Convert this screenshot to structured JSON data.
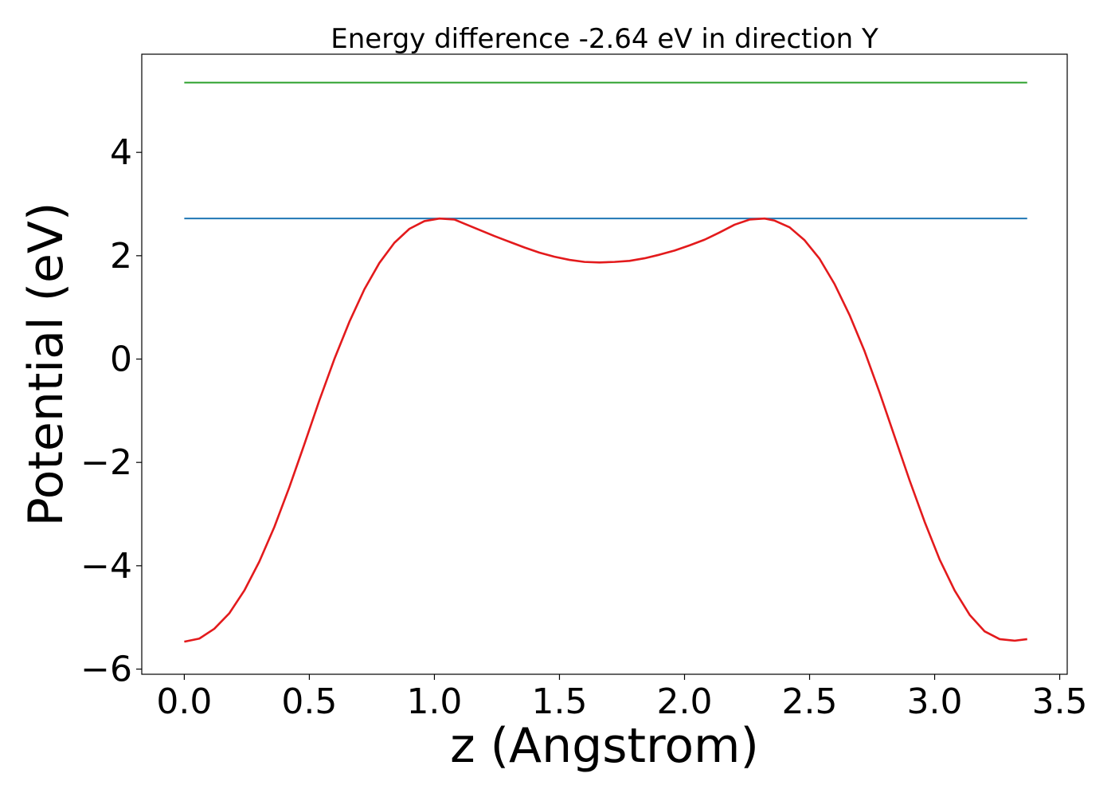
{
  "chart_data": {
    "type": "line",
    "title": "Energy difference -2.64 eV in direction Y",
    "xlabel": "z (Angstrom)",
    "ylabel": "Potential (eV)",
    "xlim": [
      -0.17,
      3.53
    ],
    "ylim": [
      -6.1,
      5.9
    ],
    "xticks": [
      {
        "value": 0.0,
        "label": "0.0"
      },
      {
        "value": 0.5,
        "label": "0.5"
      },
      {
        "value": 1.0,
        "label": "1.0"
      },
      {
        "value": 1.5,
        "label": "1.5"
      },
      {
        "value": 2.0,
        "label": "2.0"
      },
      {
        "value": 2.5,
        "label": "2.5"
      },
      {
        "value": 3.0,
        "label": "3.0"
      },
      {
        "value": 3.5,
        "label": "3.5"
      }
    ],
    "yticks": [
      {
        "value": -6,
        "label": "−6"
      },
      {
        "value": -4,
        "label": "−4"
      },
      {
        "value": -2,
        "label": "−2"
      },
      {
        "value": 0,
        "label": "0"
      },
      {
        "value": 2,
        "label": "2"
      },
      {
        "value": 4,
        "label": "4"
      }
    ],
    "grid": false,
    "series": [
      {
        "color": "#2ca02c",
        "x": [
          0.0,
          3.37
        ],
        "y": [
          5.35,
          5.35
        ]
      },
      {
        "color": "#1f77b4",
        "x": [
          0.0,
          3.37
        ],
        "y": [
          2.72,
          2.72
        ]
      },
      {
        "color": "#e31a1c",
        "x": [
          0.0,
          0.06,
          0.12,
          0.18,
          0.24,
          0.3,
          0.36,
          0.42,
          0.48,
          0.54,
          0.6,
          0.66,
          0.72,
          0.78,
          0.84,
          0.9,
          0.96,
          1.02,
          1.08,
          1.12,
          1.18,
          1.24,
          1.3,
          1.36,
          1.42,
          1.48,
          1.54,
          1.6,
          1.66,
          1.72,
          1.78,
          1.84,
          1.9,
          1.96,
          2.02,
          2.08,
          2.14,
          2.2,
          2.26,
          2.32,
          2.36,
          2.42,
          2.48,
          2.54,
          2.6,
          2.66,
          2.72,
          2.78,
          2.84,
          2.9,
          2.96,
          3.02,
          3.08,
          3.14,
          3.2,
          3.26,
          3.32,
          3.37
        ],
        "y": [
          -5.47,
          -5.41,
          -5.22,
          -4.92,
          -4.48,
          -3.92,
          -3.25,
          -2.48,
          -1.65,
          -0.8,
          0.0,
          0.72,
          1.35,
          1.86,
          2.25,
          2.52,
          2.67,
          2.72,
          2.7,
          2.62,
          2.5,
          2.38,
          2.27,
          2.16,
          2.06,
          1.98,
          1.92,
          1.88,
          1.87,
          1.88,
          1.9,
          1.95,
          2.02,
          2.1,
          2.2,
          2.31,
          2.45,
          2.6,
          2.7,
          2.72,
          2.68,
          2.55,
          2.3,
          1.94,
          1.45,
          0.85,
          0.15,
          -0.65,
          -1.5,
          -2.35,
          -3.15,
          -3.88,
          -4.48,
          -4.95,
          -5.27,
          -5.42,
          -5.45,
          -5.42
        ]
      }
    ]
  }
}
